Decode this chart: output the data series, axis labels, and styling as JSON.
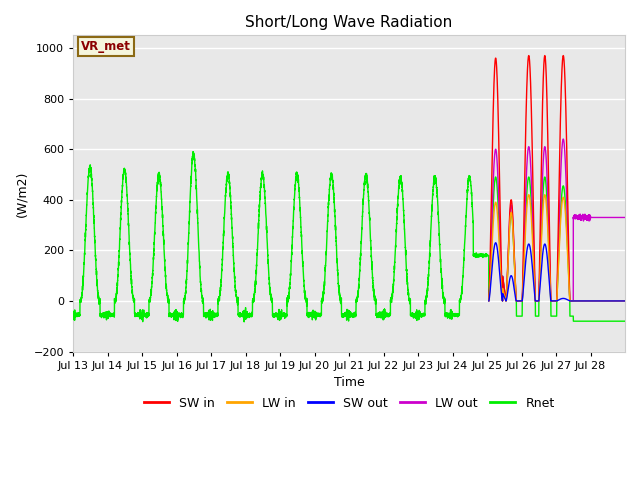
{
  "title": "Short/Long Wave Radiation",
  "xlabel": "Time",
  "ylabel": "(W/m2)",
  "ylim": [
    -200,
    1050
  ],
  "xlim": [
    0,
    16
  ],
  "figure_bg": "#ffffff",
  "plot_bg": "#e8e8e8",
  "grid_color": "#ffffff",
  "annotation_label": "VR_met",
  "annotation_fg": "#8b0000",
  "annotation_bg": "#f5f5dc",
  "annotation_edge": "#8b6914",
  "colors": {
    "SW_in": "#ff0000",
    "LW_in": "#ffa500",
    "SW_out": "#0000ff",
    "LW_out": "#cc00cc",
    "Rnet": "#00ee00"
  },
  "tick_labels": [
    "Jul 13",
    "Jul 14",
    "Jul 15",
    "Jul 16",
    "Jul 17",
    "Jul 18",
    "Jul 19",
    "Jul 20",
    "Jul 21",
    "Jul 22",
    "Jul 23",
    "Jul 24",
    "Jul 25",
    "Jul 26",
    "Jul 27",
    "Jul 28"
  ],
  "yticks": [
    -200,
    0,
    200,
    400,
    600,
    800,
    1000
  ],
  "figsize": [
    6.4,
    4.8
  ],
  "dpi": 100,
  "rnet_amps": [
    530,
    520,
    500,
    580,
    500,
    500,
    500,
    500,
    500,
    490,
    490
  ],
  "rnet_night": -55
}
